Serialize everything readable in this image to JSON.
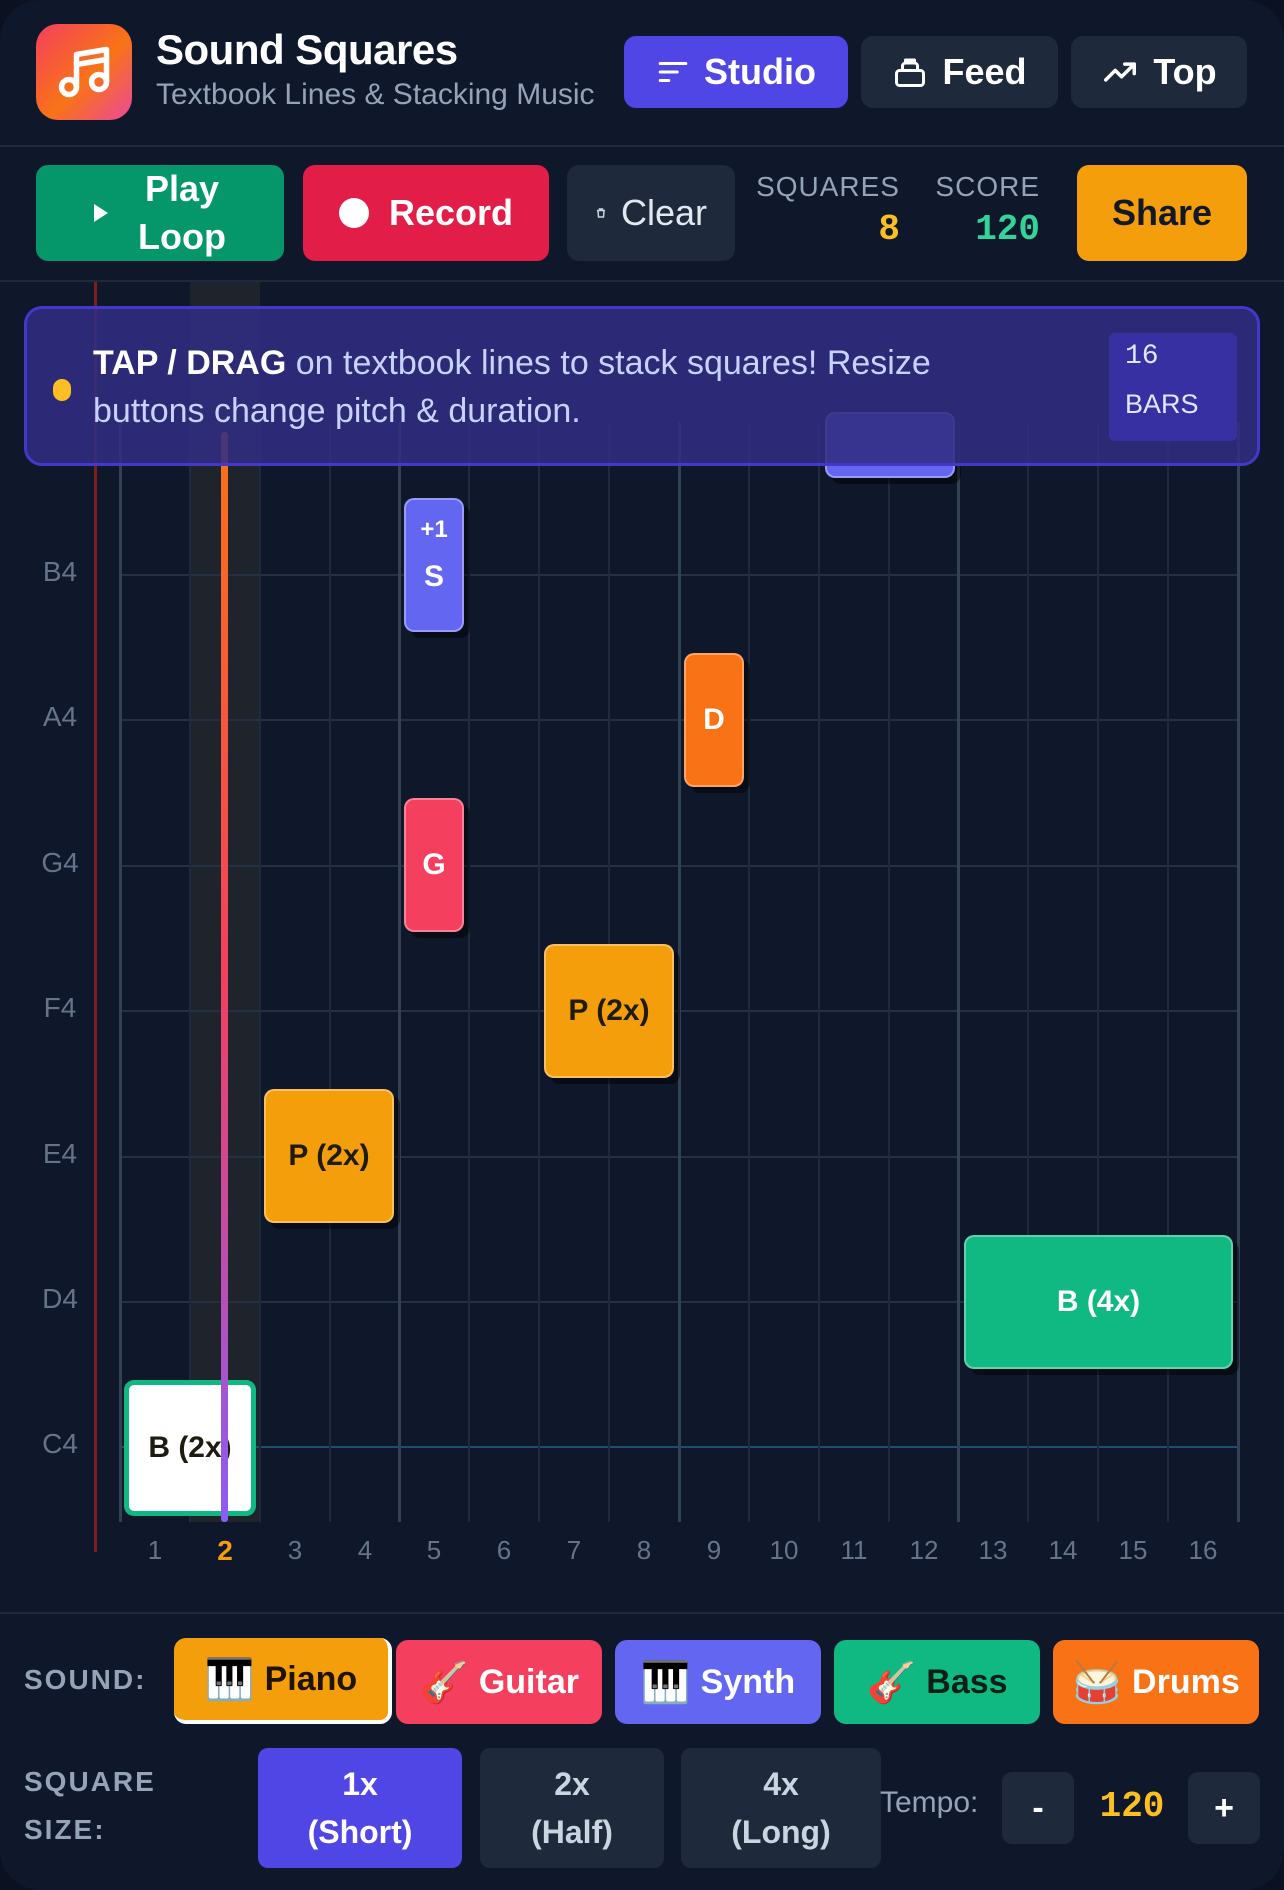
{
  "header": {
    "title": "Sound Squares",
    "subtitle": "Textbook Lines & Stacking Music",
    "nav": [
      {
        "label": "Studio",
        "icon": "lines-icon",
        "active": true
      },
      {
        "label": "Feed",
        "icon": "inbox-icon",
        "active": false
      },
      {
        "label": "Top",
        "icon": "trending-up-icon",
        "active": false
      }
    ]
  },
  "toolbar": {
    "play_line1": "Play",
    "play_line2": "Loop",
    "record_label": "Record",
    "clear_label": "Clear",
    "squares_label": "SQUARES",
    "squares_value": "8",
    "score_label": "SCORE",
    "score_value": "120",
    "share_label": "Share"
  },
  "banner": {
    "strong": "TAP / DRAG",
    "text": " on textbook lines to stack squares! Resize buttons change pitch & duration.",
    "bars_number": "16",
    "bars_label": "BARS"
  },
  "grid": {
    "pitches": [
      "B4",
      "A4",
      "G4",
      "F4",
      "E4",
      "D4",
      "C4"
    ],
    "bars": [
      "1",
      "2",
      "3",
      "4",
      "5",
      "6",
      "7",
      "8",
      "9",
      "10",
      "11",
      "12",
      "13",
      "14",
      "15",
      "16"
    ],
    "current_bar": "2",
    "notes": [
      {
        "label": "S",
        "badge": "+1",
        "pitch": "B4",
        "bar": 5,
        "length": 1,
        "color": "#6366f1"
      },
      {
        "label": "D",
        "pitch": "A4",
        "bar": 9,
        "length": 1,
        "color": "#f97316"
      },
      {
        "label": "G",
        "pitch": "G4",
        "bar": 5,
        "length": 1,
        "color": "#f43f5e"
      },
      {
        "label": "P (2x)",
        "pitch": "F4",
        "bar": 7,
        "length": 2,
        "color": "#f59e0b"
      },
      {
        "label": "P (2x)",
        "pitch": "E4",
        "bar": 3,
        "length": 2,
        "color": "#f59e0b"
      },
      {
        "label": "B (4x)",
        "pitch": "D4",
        "bar": 13,
        "length": 4,
        "color": "#10b981"
      },
      {
        "label": "B (2x)",
        "pitch": "C4",
        "bar": 1,
        "length": 2,
        "color": "#ffffff",
        "selected": true
      }
    ]
  },
  "bottom": {
    "sound_label": "SOUND:",
    "sounds": [
      {
        "label": "Piano",
        "icon": "piano-icon",
        "glyph": "🎹",
        "color": "#f59e0b",
        "active": true
      },
      {
        "label": "Guitar",
        "icon": "guitar-icon",
        "glyph": "🎸",
        "color": "#f43f5e",
        "active": false
      },
      {
        "label": "Synth",
        "icon": "keyboard-icon",
        "glyph": "🎹",
        "color": "#6366f1",
        "active": false
      },
      {
        "label": "Bass",
        "icon": "bass-guitar-icon",
        "glyph": "🎸",
        "color": "#10b981",
        "active": false
      },
      {
        "label": "Drums",
        "icon": "drum-icon",
        "glyph": "🥁",
        "color": "#f97316",
        "active": false
      }
    ],
    "size_label_line1": "SQUARE",
    "size_label_line2": "SIZE:",
    "sizes": [
      {
        "line1": "1x",
        "line2": "(Short)",
        "active": true
      },
      {
        "line1": "2x",
        "line2": "(Half)",
        "active": false
      },
      {
        "line1": "4x",
        "line2": "(Long)",
        "active": false
      }
    ],
    "tempo_label": "Tempo:",
    "tempo_minus": "-",
    "tempo_value": "120",
    "tempo_plus": "+"
  }
}
